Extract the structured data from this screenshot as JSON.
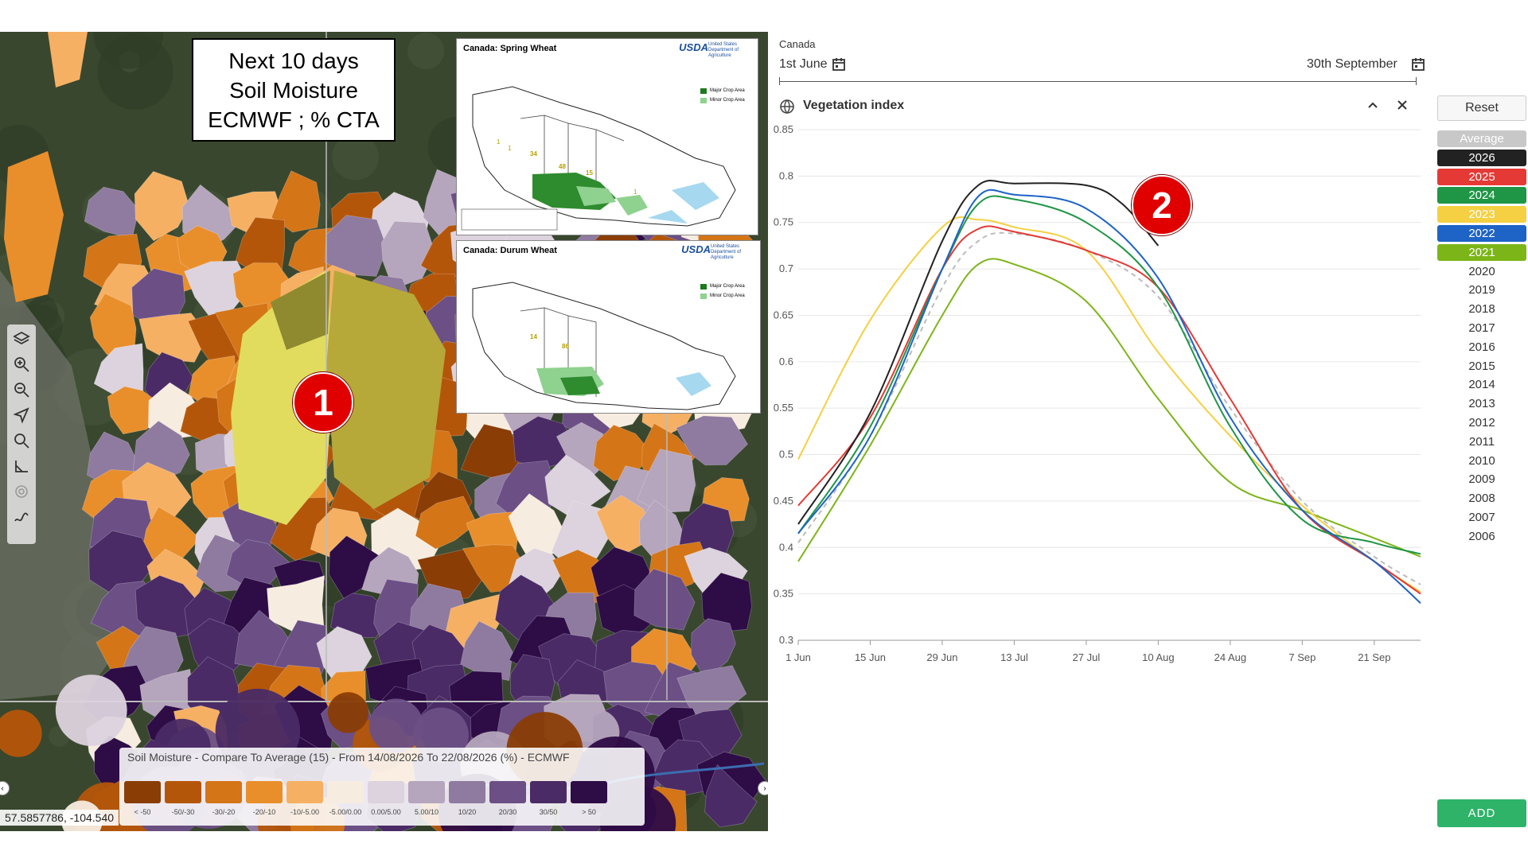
{
  "map": {
    "title_lines": [
      "Next 10 days",
      "Soil Moisture",
      "ECMWF ; % CTA"
    ],
    "badge": "1",
    "insets": [
      {
        "title": "Canada:  Spring Wheat",
        "logo": "USDA",
        "org": "United States Department of Agriculture",
        "legend": [
          "Major Crop Area",
          "Minor Crop Area"
        ],
        "numbers": [
          "1",
          "1",
          "34",
          "48",
          "15",
          "1"
        ]
      },
      {
        "title": "Canada:  Durum Wheat",
        "logo": "USDA",
        "org": "United States Department of Agriculture",
        "legend": [
          "Major Crop Area",
          "Minor Crop Area"
        ],
        "numbers": [
          "14",
          "86"
        ]
      }
    ],
    "legend": {
      "title": "Soil Moisture - Compare To Average (15) - From 14/08/2026 To 22/08/2026 (%) - ECMWF",
      "classes": [
        {
          "label": "< -50",
          "color": "#8a3d05"
        },
        {
          "label": "-50/-30",
          "color": "#b4560a"
        },
        {
          "label": "-30/-20",
          "color": "#d47517"
        },
        {
          "label": "-20/-10",
          "color": "#e88f2c"
        },
        {
          "label": "-10/-5.00",
          "color": "#f6b063"
        },
        {
          "label": "-5.00/0.00",
          "color": "#f7ece0"
        },
        {
          "label": "0.00/5.00",
          "color": "#dcd3de"
        },
        {
          "label": "5.00/10",
          "color": "#b5a5bd"
        },
        {
          "label": "10/20",
          "color": "#8f7aa0"
        },
        {
          "label": "20/30",
          "color": "#6b4f85"
        },
        {
          "label": "30/50",
          "color": "#4a2b66"
        },
        {
          "label": "> 50",
          "color": "#2e0c46"
        }
      ]
    },
    "coordinates": "57.5857786, -104.540",
    "tools": [
      "layers-icon",
      "zoom-in-icon",
      "zoom-out-icon",
      "navigate-icon",
      "search-icon",
      "measure-icon",
      "target-icon",
      "draw-icon"
    ]
  },
  "chart_panel": {
    "region": "Canada",
    "start_date": "1st June",
    "end_date": "30th September",
    "title": "Vegetation index",
    "reset_label": "Reset",
    "add_label": "ADD",
    "badge": "2",
    "years": [
      {
        "label": "Average",
        "color": "#c8c8c8",
        "active": true
      },
      {
        "label": "2026",
        "color": "#222222",
        "active": true
      },
      {
        "label": "2025",
        "color": "#e53935",
        "active": true
      },
      {
        "label": "2024",
        "color": "#1e9646",
        "active": true
      },
      {
        "label": "2023",
        "color": "#f5d042",
        "active": true
      },
      {
        "label": "2022",
        "color": "#1e63c6",
        "active": true
      },
      {
        "label": "2021",
        "color": "#7cb518",
        "active": true
      },
      {
        "label": "2020",
        "active": false
      },
      {
        "label": "2019",
        "active": false
      },
      {
        "label": "2018",
        "active": false
      },
      {
        "label": "2017",
        "active": false
      },
      {
        "label": "2016",
        "active": false
      },
      {
        "label": "2015",
        "active": false
      },
      {
        "label": "2014",
        "active": false
      },
      {
        "label": "2013",
        "active": false
      },
      {
        "label": "2012",
        "active": false
      },
      {
        "label": "2011",
        "active": false
      },
      {
        "label": "2010",
        "active": false
      },
      {
        "label": "2009",
        "active": false
      },
      {
        "label": "2008",
        "active": false
      },
      {
        "label": "2007",
        "active": false
      },
      {
        "label": "2006",
        "active": false
      }
    ]
  },
  "chart_data": {
    "type": "line",
    "title": "Vegetation index",
    "x_ticks": [
      "1 Jun",
      "15 Jun",
      "29 Jun",
      "13 Jul",
      "27 Jul",
      "10 Aug",
      "24 Aug",
      "7 Sep",
      "21 Sep"
    ],
    "xlim": [
      "2026-06-01",
      "2026-09-30"
    ],
    "y_ticks": [
      "0.3",
      "0.35",
      "0.4",
      "0.45",
      "0.5",
      "0.55",
      "0.6",
      "0.65",
      "0.7",
      "0.75",
      "0.8",
      "0.85"
    ],
    "ylim": [
      0.3,
      0.85
    ],
    "grid": true,
    "series": [
      {
        "name": "Average",
        "color": "#bbbbbb",
        "dashed": true,
        "x": [
          "2026-06-01",
          "2026-06-15",
          "2026-06-29",
          "2026-07-06",
          "2026-07-13",
          "2026-07-27",
          "2026-08-10",
          "2026-08-24",
          "2026-09-07",
          "2026-09-21",
          "2026-09-30"
        ],
        "y": [
          0.405,
          0.52,
          0.68,
          0.73,
          0.738,
          0.72,
          0.67,
          0.55,
          0.45,
          0.39,
          0.36
        ]
      },
      {
        "name": "2026",
        "color": "#222222",
        "x": [
          "2026-06-01",
          "2026-06-15",
          "2026-06-29",
          "2026-07-06",
          "2026-07-13",
          "2026-07-27",
          "2026-08-03",
          "2026-08-10"
        ],
        "y": [
          0.425,
          0.545,
          0.73,
          0.79,
          0.792,
          0.79,
          0.77,
          0.725
        ]
      },
      {
        "name": "2025",
        "color": "#e53935",
        "x": [
          "2026-06-01",
          "2026-06-15",
          "2026-06-29",
          "2026-07-06",
          "2026-07-13",
          "2026-07-27",
          "2026-08-10",
          "2026-08-24",
          "2026-09-07",
          "2026-09-21",
          "2026-09-30"
        ],
        "y": [
          0.445,
          0.54,
          0.7,
          0.743,
          0.74,
          0.72,
          0.68,
          0.56,
          0.44,
          0.385,
          0.35
        ]
      },
      {
        "name": "2024",
        "color": "#1e9646",
        "x": [
          "2026-06-01",
          "2026-06-15",
          "2026-06-29",
          "2026-07-06",
          "2026-07-13",
          "2026-07-27",
          "2026-08-10",
          "2026-08-24",
          "2026-09-07",
          "2026-09-21",
          "2026-09-30"
        ],
        "y": [
          0.415,
          0.53,
          0.7,
          0.77,
          0.775,
          0.75,
          0.68,
          0.53,
          0.43,
          0.405,
          0.393
        ]
      },
      {
        "name": "2023",
        "color": "#f5d042",
        "x": [
          "2026-06-01",
          "2026-06-15",
          "2026-06-29",
          "2026-07-06",
          "2026-07-13",
          "2026-07-27",
          "2026-08-10",
          "2026-08-24",
          "2026-09-07",
          "2026-09-21",
          "2026-09-30"
        ],
        "y": [
          0.495,
          0.645,
          0.745,
          0.753,
          0.745,
          0.72,
          0.61,
          0.52,
          0.445,
          0.385,
          0.352
        ]
      },
      {
        "name": "2022",
        "color": "#1e63c6",
        "x": [
          "2026-06-01",
          "2026-06-15",
          "2026-06-29",
          "2026-07-06",
          "2026-07-13",
          "2026-07-27",
          "2026-08-10",
          "2026-08-24",
          "2026-09-07",
          "2026-09-21",
          "2026-09-30"
        ],
        "y": [
          0.415,
          0.52,
          0.7,
          0.778,
          0.78,
          0.765,
          0.69,
          0.54,
          0.44,
          0.385,
          0.34
        ]
      },
      {
        "name": "2021",
        "color": "#7cb518",
        "x": [
          "2026-06-01",
          "2026-06-15",
          "2026-06-29",
          "2026-07-06",
          "2026-07-13",
          "2026-07-27",
          "2026-08-10",
          "2026-08-24",
          "2026-09-07",
          "2026-09-21",
          "2026-09-30"
        ],
        "y": [
          0.385,
          0.51,
          0.65,
          0.705,
          0.705,
          0.665,
          0.56,
          0.47,
          0.44,
          0.41,
          0.39
        ]
      }
    ]
  }
}
